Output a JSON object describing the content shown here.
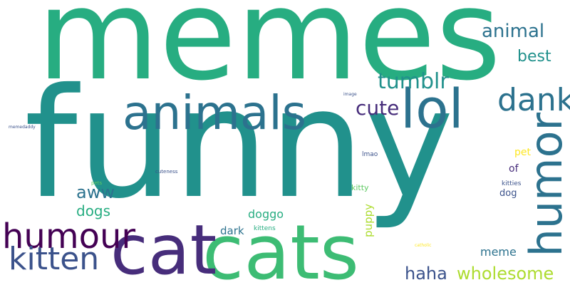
{
  "words": {
    "memes": "memes",
    "funny": "funny",
    "cats": "cats",
    "cat": "cat",
    "animals": "animals",
    "lol": "lol",
    "humor": "humor",
    "dank": "dank",
    "humour": "humour",
    "kitten": "kitten",
    "tumblr": "tumblr",
    "animal": "animal",
    "best": "best",
    "cute": "cute",
    "aww": "aww",
    "dogs": "dogs",
    "haha": "haha",
    "wholesome": "wholesome",
    "doggo": "doggo",
    "dark": "dark",
    "kittens": "kittens",
    "meme": "meme",
    "puppy": "puppy",
    "kitty": "kitty",
    "lmao": "lmao",
    "pet": "pet",
    "of": "of",
    "dog": "dog",
    "kitties": "kitties",
    "pets": "pets",
    "cuteness": "cuteness",
    "image": "image",
    "memedaddy": "memedaddy",
    "catholic": "catholic"
  },
  "colors": {
    "green": "#27ad81",
    "teal": "#21918c",
    "bluegreen": "#2c728e",
    "navy": "#3b528b",
    "purple": "#472d7b",
    "darkpurple": "#440154",
    "lightgreen": "#5ec962",
    "yellowgreen": "#addc30",
    "yellow": "#fde725"
  }
}
